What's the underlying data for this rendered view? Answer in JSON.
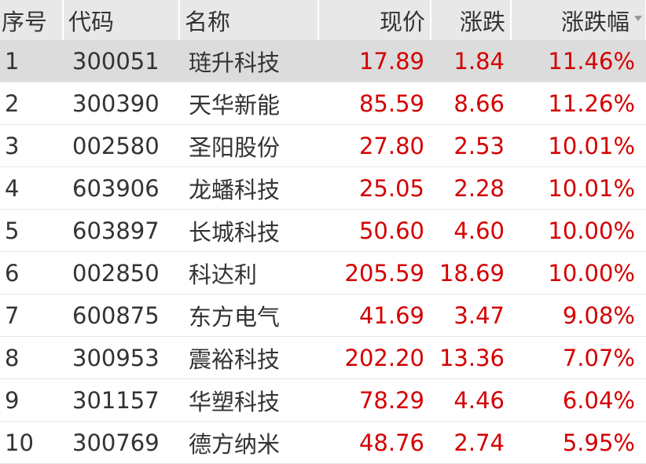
{
  "headers": [
    "序号",
    "代码",
    "名称",
    "现价",
    "涨跌",
    "涨跌幅"
  ],
  "sort_icon": "sort-desc-icon",
  "colors": {
    "up": "#d40000"
  },
  "rows": [
    [
      "1",
      "300051",
      "琏升科技",
      "17.89",
      "1.84",
      "11.46%"
    ],
    [
      "2",
      "300390",
      "天华新能",
      "85.59",
      "8.66",
      "11.26%"
    ],
    [
      "3",
      "002580",
      "圣阳股份",
      "27.80",
      "2.53",
      "10.01%"
    ],
    [
      "4",
      "603906",
      "龙蟠科技",
      "25.05",
      "2.28",
      "10.01%"
    ],
    [
      "5",
      "603897",
      "长城科技",
      "50.60",
      "4.60",
      "10.00%"
    ],
    [
      "6",
      "002850",
      "科达利",
      "205.59",
      "18.69",
      "10.00%"
    ],
    [
      "7",
      "600875",
      "东方电气",
      "41.69",
      "3.47",
      "9.08%"
    ],
    [
      "8",
      "300953",
      "震裕科技",
      "202.20",
      "13.36",
      "7.07%"
    ],
    [
      "9",
      "301157",
      "华塑科技",
      "78.29",
      "4.46",
      "6.04%"
    ],
    [
      "10",
      "300769",
      "德方纳米",
      "48.76",
      "2.74",
      "5.95%"
    ]
  ]
}
